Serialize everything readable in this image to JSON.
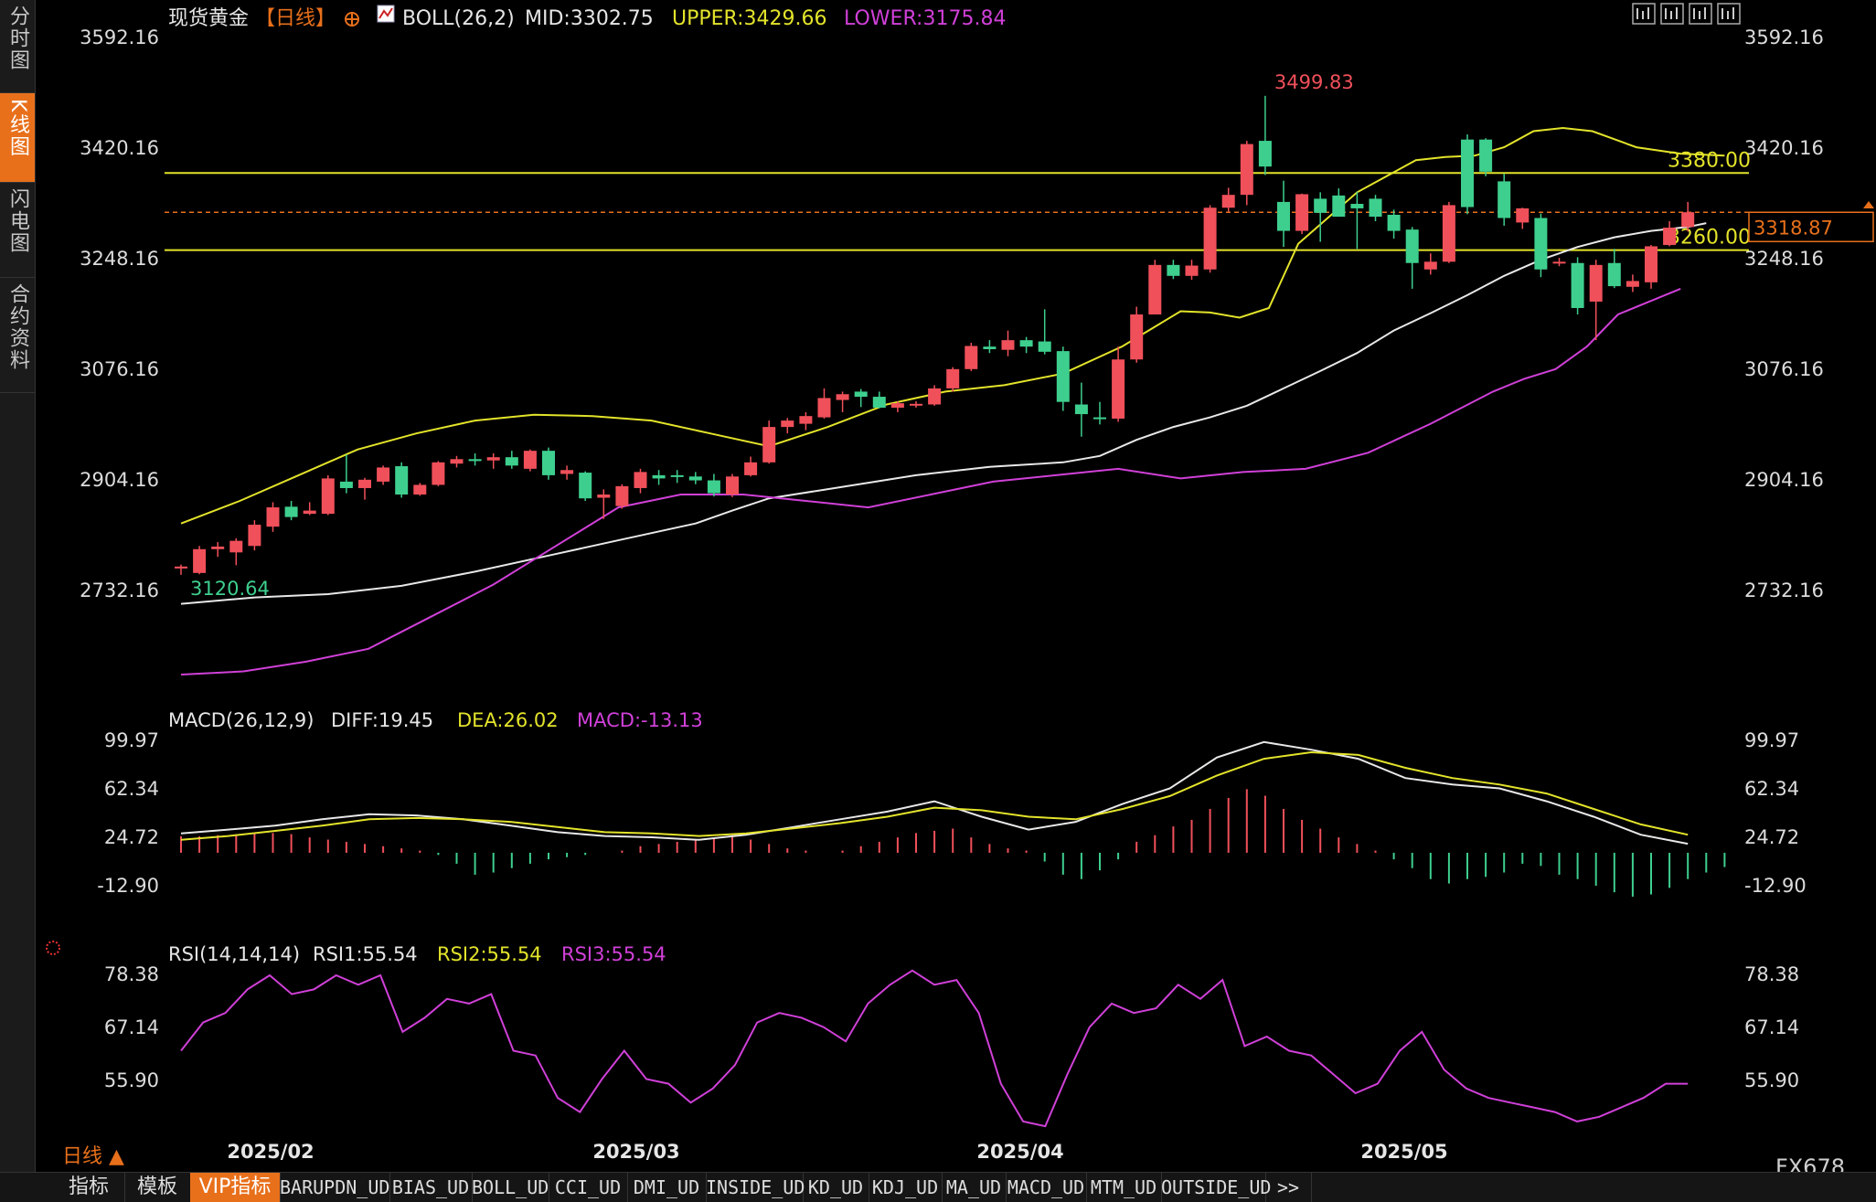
{
  "sidebar": {
    "tabs": [
      {
        "label": "分时图"
      },
      {
        "label": "K线图"
      },
      {
        "label": "闪电图"
      },
      {
        "label": "合约资料"
      }
    ]
  },
  "header": {
    "symbol": "现货黄金",
    "period": "【日线】",
    "boll_label": "BOLL(26,2)",
    "mid": "MID:3302.75",
    "upper": "UPPER:3429.66",
    "lower": "LOWER:3175.84"
  },
  "toolbar_icons": [
    "crosshair-icon",
    "chart-bars-icon",
    "chart-edit-icon",
    "chart-arrow-icon"
  ],
  "price_axis": {
    "labels": [
      "3592.16",
      "3420.16",
      "3248.16",
      "3076.16",
      "2904.16",
      "2732.16"
    ],
    "levels": [
      3592.16,
      3420.16,
      3248.16,
      3076.16,
      2904.16,
      2732.16
    ]
  },
  "lines": {
    "resistance": "3380.00",
    "support": "3260.00",
    "last_price": "3318.87",
    "high_label": "3499.83",
    "low_label": "3120.64"
  },
  "macd_panel": {
    "title": "MACD(26,12,9)",
    "diff": "DIFF:19.45",
    "dea": "DEA:26.02",
    "macd": "MACD:-13.13",
    "labels": [
      "99.97",
      "62.34",
      "24.72",
      "-12.90"
    ]
  },
  "rsi_panel": {
    "title": "RSI(14,14,14)",
    "rsi1": "RSI1:55.54",
    "rsi2": "RSI2:55.54",
    "rsi3": "RSI3:55.54",
    "labels": [
      "78.38",
      "67.14",
      "55.90"
    ]
  },
  "x_axis": {
    "labels": [
      "2025/02",
      "2025/03",
      "2025/04",
      "2025/05"
    ]
  },
  "period_selector": "日线 ▲",
  "watermark": "FX678",
  "bottom_tabs": [
    "指标",
    "模板",
    "VIP指标",
    "BARUPDN_UD",
    "BIAS_UD",
    "BOLL_UD",
    "CCI_UD",
    "DMI_UD",
    "INSIDE_UD",
    "KD_UD",
    "KDJ_UD",
    "MA_UD",
    "MACD_UD",
    "MTM_UD",
    "OUTSIDE_UD",
    ">>"
  ],
  "colors": {
    "up": "#f0505a",
    "down": "#3ecf8e",
    "boll_mid": "#e8e8e8",
    "boll_upper": "#e3e32b",
    "boll_lower": "#d040d8",
    "accent": "#e8701b",
    "hline": "#e3e32b"
  },
  "chart_data": {
    "type": "candlestick",
    "ylim": [
      2600,
      3620
    ],
    "candles": [
      {
        "o": 2765,
        "h": 2771,
        "l": 2755,
        "c": 2768
      },
      {
        "o": 2758,
        "h": 2800,
        "l": 2756,
        "c": 2795
      },
      {
        "o": 2795,
        "h": 2806,
        "l": 2783,
        "c": 2799
      },
      {
        "o": 2790,
        "h": 2812,
        "l": 2770,
        "c": 2808
      },
      {
        "o": 2800,
        "h": 2840,
        "l": 2793,
        "c": 2833
      },
      {
        "o": 2830,
        "h": 2868,
        "l": 2822,
        "c": 2860
      },
      {
        "o": 2861,
        "h": 2870,
        "l": 2840,
        "c": 2845
      },
      {
        "o": 2850,
        "h": 2868,
        "l": 2848,
        "c": 2855
      },
      {
        "o": 2850,
        "h": 2910,
        "l": 2848,
        "c": 2905
      },
      {
        "o": 2900,
        "h": 2942,
        "l": 2882,
        "c": 2890
      },
      {
        "o": 2890,
        "h": 2906,
        "l": 2872,
        "c": 2903
      },
      {
        "o": 2900,
        "h": 2925,
        "l": 2895,
        "c": 2922
      },
      {
        "o": 2924,
        "h": 2930,
        "l": 2875,
        "c": 2880
      },
      {
        "o": 2880,
        "h": 2898,
        "l": 2878,
        "c": 2895
      },
      {
        "o": 2895,
        "h": 2932,
        "l": 2893,
        "c": 2930
      },
      {
        "o": 2928,
        "h": 2940,
        "l": 2922,
        "c": 2935
      },
      {
        "o": 2935,
        "h": 2944,
        "l": 2925,
        "c": 2932
      },
      {
        "o": 2933,
        "h": 2944,
        "l": 2920,
        "c": 2938
      },
      {
        "o": 2938,
        "h": 2948,
        "l": 2920,
        "c": 2925
      },
      {
        "o": 2920,
        "h": 2950,
        "l": 2916,
        "c": 2948
      },
      {
        "o": 2948,
        "h": 2953,
        "l": 2903,
        "c": 2910
      },
      {
        "o": 2912,
        "h": 2925,
        "l": 2903,
        "c": 2918
      },
      {
        "o": 2914,
        "h": 2916,
        "l": 2870,
        "c": 2874
      },
      {
        "o": 2875,
        "h": 2888,
        "l": 2842,
        "c": 2880
      },
      {
        "o": 2862,
        "h": 2896,
        "l": 2858,
        "c": 2893
      },
      {
        "o": 2890,
        "h": 2920,
        "l": 2882,
        "c": 2915
      },
      {
        "o": 2910,
        "h": 2918,
        "l": 2895,
        "c": 2905
      },
      {
        "o": 2910,
        "h": 2918,
        "l": 2898,
        "c": 2908
      },
      {
        "o": 2908,
        "h": 2915,
        "l": 2896,
        "c": 2902
      },
      {
        "o": 2902,
        "h": 2912,
        "l": 2877,
        "c": 2882
      },
      {
        "o": 2880,
        "h": 2912,
        "l": 2876,
        "c": 2908
      },
      {
        "o": 2910,
        "h": 2939,
        "l": 2908,
        "c": 2930
      },
      {
        "o": 2930,
        "h": 2995,
        "l": 2928,
        "c": 2985
      },
      {
        "o": 2985,
        "h": 2999,
        "l": 2975,
        "c": 2995
      },
      {
        "o": 2990,
        "h": 3008,
        "l": 2980,
        "c": 3002
      },
      {
        "o": 3000,
        "h": 3045,
        "l": 2998,
        "c": 3030
      },
      {
        "o": 3027,
        "h": 3040,
        "l": 3008,
        "c": 3036
      },
      {
        "o": 3040,
        "h": 3044,
        "l": 3016,
        "c": 3032
      },
      {
        "o": 3032,
        "h": 3040,
        "l": 3014,
        "c": 3015
      },
      {
        "o": 3015,
        "h": 3025,
        "l": 3008,
        "c": 3022
      },
      {
        "o": 3020,
        "h": 3025,
        "l": 3015,
        "c": 3021
      },
      {
        "o": 3020,
        "h": 3050,
        "l": 3018,
        "c": 3045
      },
      {
        "o": 3045,
        "h": 3078,
        "l": 3040,
        "c": 3075
      },
      {
        "o": 3075,
        "h": 3116,
        "l": 3072,
        "c": 3111
      },
      {
        "o": 3110,
        "h": 3120,
        "l": 3100,
        "c": 3106
      },
      {
        "o": 3105,
        "h": 3135,
        "l": 3095,
        "c": 3120
      },
      {
        "o": 3120,
        "h": 3125,
        "l": 3100,
        "c": 3110
      },
      {
        "o": 3118,
        "h": 3168,
        "l": 3098,
        "c": 3102
      },
      {
        "o": 3103,
        "h": 3110,
        "l": 3010,
        "c": 3024
      },
      {
        "o": 3020,
        "h": 3054,
        "l": 2970,
        "c": 3005
      },
      {
        "o": 3000,
        "h": 3024,
        "l": 2989,
        "c": 2998
      },
      {
        "o": 2998,
        "h": 3110,
        "l": 2993,
        "c": 3090
      },
      {
        "o": 3090,
        "h": 3172,
        "l": 3085,
        "c": 3160
      },
      {
        "o": 3160,
        "h": 3245,
        "l": 3160,
        "c": 3237
      },
      {
        "o": 3237,
        "h": 3245,
        "l": 3215,
        "c": 3220
      },
      {
        "o": 3220,
        "h": 3245,
        "l": 3214,
        "c": 3236
      },
      {
        "o": 3230,
        "h": 3330,
        "l": 3225,
        "c": 3326
      },
      {
        "o": 3326,
        "h": 3357,
        "l": 3320,
        "c": 3346
      },
      {
        "o": 3346,
        "h": 3430,
        "l": 3330,
        "c": 3425
      },
      {
        "o": 3430,
        "h": 3500,
        "l": 3377,
        "c": 3390
      },
      {
        "o": 3335,
        "h": 3368,
        "l": 3265,
        "c": 3290
      },
      {
        "o": 3290,
        "h": 3348,
        "l": 3285,
        "c": 3347
      },
      {
        "o": 3340,
        "h": 3350,
        "l": 3273,
        "c": 3318
      },
      {
        "o": 3345,
        "h": 3356,
        "l": 3313,
        "c": 3312
      },
      {
        "o": 3332,
        "h": 3351,
        "l": 3262,
        "c": 3325
      },
      {
        "o": 3340,
        "h": 3346,
        "l": 3305,
        "c": 3312
      },
      {
        "o": 3315,
        "h": 3323,
        "l": 3278,
        "c": 3290
      },
      {
        "o": 3292,
        "h": 3296,
        "l": 3200,
        "c": 3240
      },
      {
        "o": 3230,
        "h": 3255,
        "l": 3222,
        "c": 3242
      },
      {
        "o": 3242,
        "h": 3335,
        "l": 3240,
        "c": 3330
      },
      {
        "o": 3432,
        "h": 3440,
        "l": 3316,
        "c": 3327
      },
      {
        "o": 3432,
        "h": 3434,
        "l": 3375,
        "c": 3382
      },
      {
        "o": 3367,
        "h": 3379,
        "l": 3298,
        "c": 3310
      },
      {
        "o": 3303,
        "h": 3326,
        "l": 3293,
        "c": 3325
      },
      {
        "o": 3310,
        "h": 3317,
        "l": 3218,
        "c": 3230
      },
      {
        "o": 3240,
        "h": 3248,
        "l": 3235,
        "c": 3242
      },
      {
        "o": 3240,
        "h": 3249,
        "l": 3160,
        "c": 3170
      },
      {
        "o": 3180,
        "h": 3245,
        "l": 3120,
        "c": 3237
      },
      {
        "o": 3240,
        "h": 3262,
        "l": 3201,
        "c": 3204
      },
      {
        "o": 3203,
        "h": 3222,
        "l": 3195,
        "c": 3212
      },
      {
        "o": 3210,
        "h": 3268,
        "l": 3200,
        "c": 3266
      },
      {
        "o": 3268,
        "h": 3305,
        "l": 3266,
        "c": 3295
      },
      {
        "o": 3296,
        "h": 3335,
        "l": 3289,
        "c": 3319
      }
    ],
    "boll_mid": [
      2710,
      2720,
      2725,
      2738,
      2760,
      2785,
      2810,
      2835,
      2855,
      2874,
      2892,
      2910,
      2923,
      2930,
      2940,
      2965,
      2985,
      3000,
      3018,
      3045,
      3072,
      3100,
      3135,
      3162,
      3190,
      3220,
      3245,
      3265,
      3280,
      3290,
      3296,
      3302
    ],
    "boll_mid_x": [
      0,
      4,
      8,
      12,
      16,
      20,
      24,
      28,
      30,
      32,
      36,
      40,
      44,
      48,
      50,
      52,
      54,
      56,
      58,
      60,
      62,
      64,
      66,
      68,
      70,
      72,
      74,
      76,
      78,
      80,
      82,
      83
    ],
    "boll_upper": [
      2835,
      2870,
      2910,
      2950,
      2975,
      2995,
      3004,
      3002,
      2995,
      2975,
      2955,
      2985,
      3020,
      3040,
      3050,
      3068,
      3110,
      3165,
      3163,
      3155,
      3170,
      3270,
      3350,
      3400,
      3405,
      3407,
      3420,
      3445,
      3450,
      3445,
      3420,
      3410,
      3407
    ],
    "boll_upper_x": [
      0,
      4,
      8,
      12,
      16,
      20,
      24,
      28,
      32,
      36,
      40,
      44,
      48,
      52,
      56,
      60,
      64,
      68,
      70,
      72,
      74,
      76,
      80,
      84,
      86,
      88,
      90,
      92,
      94,
      96,
      99,
      102,
      105
    ],
    "boll_lower": [
      2600,
      2605,
      2620,
      2640,
      2690,
      2740,
      2800,
      2860,
      2880,
      2880,
      2870,
      2860,
      2880,
      2900,
      2910,
      2920,
      2905,
      2915,
      2920,
      2945,
      2990,
      3040,
      3060,
      3075,
      3110,
      3160,
      3180,
      3200
    ],
    "boll_lower_x": [
      0,
      4,
      8,
      12,
      16,
      20,
      24,
      28,
      32,
      36,
      40,
      44,
      48,
      52,
      56,
      60,
      64,
      68,
      72,
      76,
      80,
      84,
      86,
      88,
      90,
      92,
      94,
      96
    ],
    "macd_diff": [
      27,
      30,
      33,
      38,
      42,
      41,
      38,
      33,
      28,
      25,
      24,
      22,
      26,
      32,
      38,
      44,
      52,
      40,
      30,
      36,
      50,
      62,
      86,
      98,
      92,
      85,
      70,
      65,
      62,
      52,
      40,
      26,
      19
    ],
    "macd_dea": [
      22,
      25,
      29,
      33,
      38,
      39,
      38,
      36,
      32,
      28,
      27,
      25,
      27,
      31,
      35,
      40,
      47,
      45,
      40,
      38,
      46,
      56,
      72,
      85,
      90,
      88,
      78,
      70,
      65,
      58,
      46,
      34,
      26
    ],
    "macd_hist": [
      15,
      15,
      16,
      17,
      18,
      18,
      17,
      14,
      12,
      10,
      8,
      6,
      4,
      2,
      -2,
      -10,
      -20,
      -18,
      -14,
      -10,
      -6,
      -4,
      -2,
      0,
      2,
      6,
      8,
      10,
      12,
      14,
      16,
      12,
      8,
      4,
      2,
      0,
      2,
      6,
      10,
      14,
      18,
      20,
      22,
      14,
      8,
      4,
      2,
      -8,
      -20,
      -24,
      -16,
      -6,
      10,
      16,
      24,
      30,
      40,
      50,
      58,
      52,
      40,
      30,
      22,
      14,
      8,
      2,
      -6,
      -14,
      -24,
      -28,
      -24,
      -22,
      -18,
      -10,
      -12,
      -20,
      -24,
      -30,
      -36,
      -40,
      -38,
      -32,
      -24,
      -18,
      -13
    ],
    "rsi": [
      62,
      68,
      70,
      75,
      78,
      74,
      75,
      78,
      76,
      78,
      66,
      69,
      73,
      72,
      74,
      62,
      61,
      52,
      49,
      56,
      62,
      56,
      55,
      51,
      54,
      59,
      68,
      70,
      69,
      67,
      64,
      72,
      76,
      79,
      76,
      77,
      70,
      55,
      47,
      46,
      57,
      67,
      72,
      70,
      71,
      76,
      73,
      77,
      63,
      65,
      62,
      61,
      57,
      53,
      55,
      62,
      66,
      58,
      54,
      52,
      51,
      50,
      49,
      47,
      48,
      50,
      52,
      55,
      55
    ]
  }
}
